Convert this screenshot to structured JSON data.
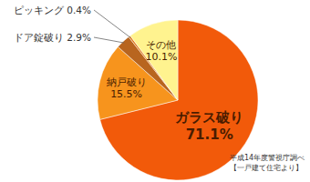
{
  "chart_data": {
    "type": "pie",
    "categories": [
      "ガラス破り",
      "納戸破り",
      "ドア錠破り",
      "ピッキング",
      "その他"
    ],
    "values": [
      71.1,
      15.5,
      2.9,
      0.4,
      10.1
    ],
    "value_labels": [
      "71.1%",
      "15.5%",
      "2.9%",
      "0.4%",
      "10.1%"
    ],
    "colors": [
      "#f25a0a",
      "#f7941d",
      "#b8651f",
      "#e07b20",
      "#fff38f"
    ],
    "data_labels": true,
    "annotations": [
      "平成14年度警視庁調べ",
      "【一戸建て住宅より】"
    ]
  }
}
